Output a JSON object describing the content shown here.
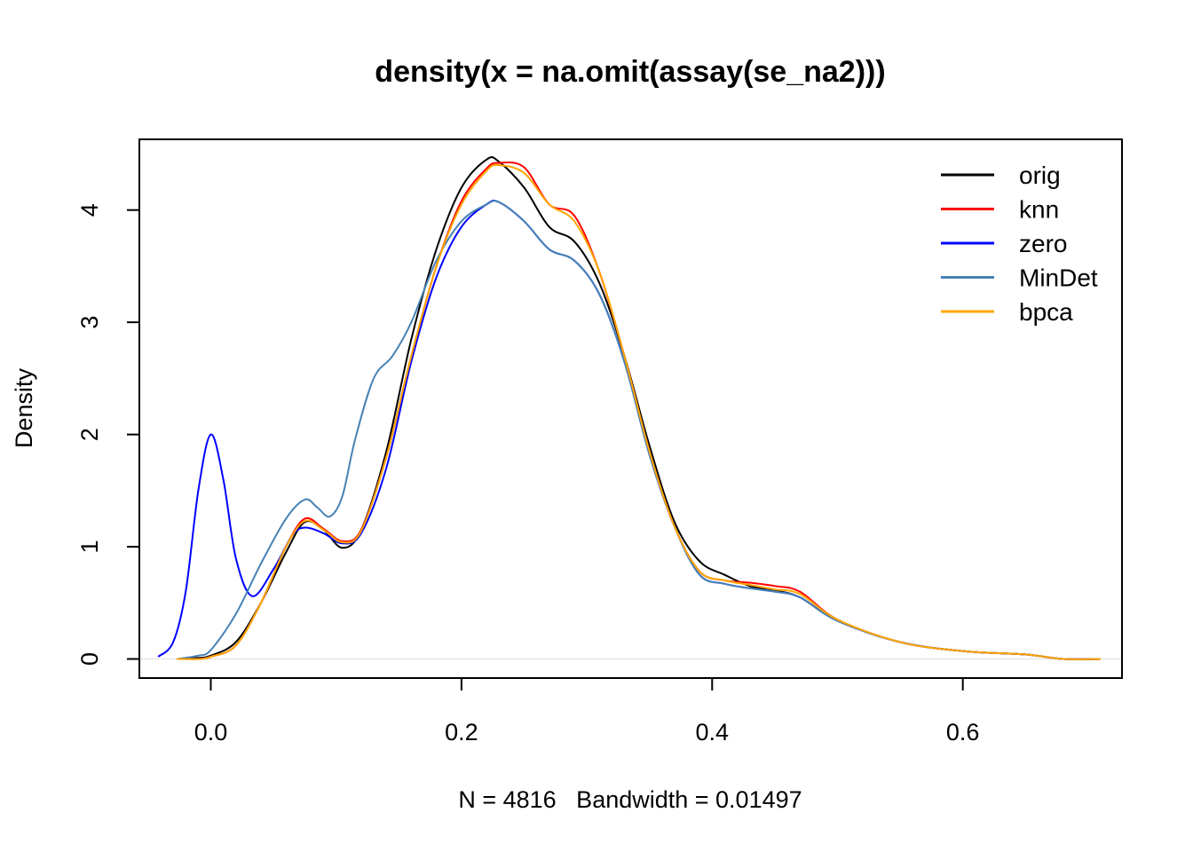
{
  "chart_data": {
    "type": "line",
    "title": "density(x = na.omit(assay(se_na2)))",
    "xlabel": "N = 4816   Bandwidth = 0.01497",
    "ylabel": "Density",
    "xlim": [
      -0.057,
      0.727
    ],
    "ylim": [
      -0.17,
      4.63
    ],
    "x_ticks": [
      0.0,
      0.2,
      0.4,
      0.6
    ],
    "x_tick_labels": [
      "0.0",
      "0.2",
      "0.4",
      "0.6"
    ],
    "y_ticks": [
      0,
      1,
      2,
      3,
      4
    ],
    "y_tick_labels": [
      "0",
      "1",
      "2",
      "3",
      "4"
    ],
    "legend_position": "top-right",
    "grid": false,
    "series": [
      {
        "name": "orig",
        "color": "#000000",
        "x": [
          -0.027,
          -0.01,
          0.0,
          0.02,
          0.04,
          0.06,
          0.075,
          0.09,
          0.105,
          0.12,
          0.14,
          0.16,
          0.18,
          0.2,
          0.22,
          0.23,
          0.25,
          0.27,
          0.29,
          0.31,
          0.33,
          0.35,
          0.37,
          0.39,
          0.41,
          0.43,
          0.45,
          0.47,
          0.5,
          0.55,
          0.6,
          0.65,
          0.68,
          0.71
        ],
        "y": [
          0.0,
          0.01,
          0.03,
          0.15,
          0.5,
          0.95,
          1.22,
          1.15,
          0.99,
          1.15,
          1.85,
          2.85,
          3.65,
          4.2,
          4.45,
          4.43,
          4.2,
          3.85,
          3.72,
          3.35,
          2.7,
          1.9,
          1.22,
          0.87,
          0.75,
          0.65,
          0.61,
          0.55,
          0.34,
          0.15,
          0.07,
          0.04,
          0.0,
          0.0
        ]
      },
      {
        "name": "knn",
        "color": "#ff0000",
        "x": [
          -0.027,
          -0.01,
          0.0,
          0.02,
          0.04,
          0.06,
          0.075,
          0.09,
          0.105,
          0.12,
          0.14,
          0.16,
          0.18,
          0.2,
          0.22,
          0.23,
          0.25,
          0.27,
          0.29,
          0.31,
          0.33,
          0.35,
          0.37,
          0.39,
          0.41,
          0.43,
          0.45,
          0.47,
          0.5,
          0.55,
          0.6,
          0.65,
          0.68,
          0.71
        ],
        "y": [
          0.0,
          0.0,
          0.02,
          0.12,
          0.5,
          1.0,
          1.25,
          1.16,
          1.05,
          1.15,
          1.8,
          2.7,
          3.5,
          4.08,
          4.37,
          4.42,
          4.38,
          4.05,
          3.95,
          3.45,
          2.7,
          1.85,
          1.18,
          0.78,
          0.7,
          0.68,
          0.65,
          0.6,
          0.35,
          0.15,
          0.07,
          0.04,
          0.0,
          0.0
        ]
      },
      {
        "name": "zero",
        "color": "#0000ff",
        "x": [
          -0.042,
          -0.03,
          -0.02,
          -0.01,
          0.0,
          0.01,
          0.02,
          0.033,
          0.05,
          0.065,
          0.075,
          0.09,
          0.105,
          0.12,
          0.14,
          0.16,
          0.18,
          0.2,
          0.22,
          0.23,
          0.25,
          0.27,
          0.29,
          0.31,
          0.33,
          0.35,
          0.37,
          0.39,
          0.41,
          0.43,
          0.45,
          0.47,
          0.5,
          0.55,
          0.6,
          0.65,
          0.68,
          0.71
        ],
        "y": [
          0.02,
          0.15,
          0.6,
          1.5,
          2.0,
          1.6,
          0.9,
          0.56,
          0.8,
          1.1,
          1.17,
          1.12,
          1.03,
          1.12,
          1.7,
          2.65,
          3.4,
          3.85,
          4.05,
          4.07,
          3.9,
          3.65,
          3.55,
          3.25,
          2.65,
          1.82,
          1.18,
          0.75,
          0.67,
          0.63,
          0.6,
          0.55,
          0.34,
          0.15,
          0.07,
          0.04,
          0.0,
          0.0
        ]
      },
      {
        "name": "MinDet",
        "color": "#4682b4",
        "x": [
          -0.027,
          -0.01,
          0.0,
          0.02,
          0.04,
          0.06,
          0.075,
          0.085,
          0.095,
          0.105,
          0.115,
          0.13,
          0.145,
          0.16,
          0.18,
          0.2,
          0.22,
          0.23,
          0.25,
          0.27,
          0.29,
          0.31,
          0.33,
          0.35,
          0.37,
          0.39,
          0.41,
          0.43,
          0.45,
          0.47,
          0.5,
          0.55,
          0.6,
          0.65,
          0.68,
          0.71
        ],
        "y": [
          0.0,
          0.03,
          0.08,
          0.4,
          0.85,
          1.25,
          1.42,
          1.35,
          1.27,
          1.45,
          1.95,
          2.5,
          2.7,
          3.0,
          3.55,
          3.9,
          4.05,
          4.07,
          3.9,
          3.65,
          3.55,
          3.25,
          2.65,
          1.82,
          1.18,
          0.75,
          0.67,
          0.63,
          0.6,
          0.55,
          0.34,
          0.15,
          0.07,
          0.04,
          0.0,
          0.0
        ]
      },
      {
        "name": "bpca",
        "color": "#ffa500",
        "x": [
          -0.027,
          -0.01,
          0.0,
          0.02,
          0.04,
          0.06,
          0.075,
          0.09,
          0.105,
          0.12,
          0.14,
          0.16,
          0.18,
          0.2,
          0.22,
          0.23,
          0.25,
          0.27,
          0.29,
          0.31,
          0.33,
          0.35,
          0.37,
          0.39,
          0.41,
          0.43,
          0.45,
          0.47,
          0.5,
          0.55,
          0.6,
          0.65,
          0.68,
          0.71
        ],
        "y": [
          0.0,
          0.0,
          0.02,
          0.12,
          0.5,
          1.0,
          1.23,
          1.15,
          1.04,
          1.14,
          1.8,
          2.7,
          3.5,
          4.05,
          4.35,
          4.4,
          4.33,
          4.05,
          3.9,
          3.45,
          2.7,
          1.85,
          1.18,
          0.78,
          0.7,
          0.66,
          0.62,
          0.58,
          0.35,
          0.15,
          0.07,
          0.04,
          0.0,
          0.0
        ]
      }
    ]
  }
}
